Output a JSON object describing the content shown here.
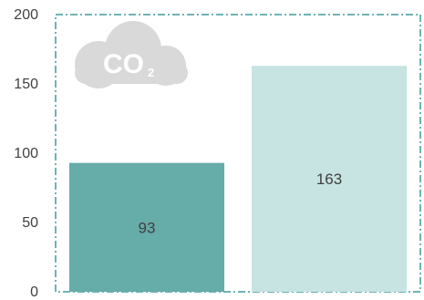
{
  "chart_data": {
    "type": "bar",
    "categories": [
      "",
      ""
    ],
    "values": [
      93,
      163
    ],
    "data_labels": [
      "93",
      "163"
    ],
    "ylim": [
      0,
      200
    ],
    "yticks": [
      "0",
      "50",
      "100",
      "150",
      "200"
    ],
    "title": "",
    "xlabel": "",
    "ylabel": "",
    "grid": false,
    "legend": "none",
    "colors": [
      "#66aca9",
      "#c7e3e2"
    ],
    "frame_color": "#3e9a9c"
  },
  "badge": {
    "icon": "co2-cloud-icon",
    "main": "CO",
    "sub": "2",
    "color": "#d9d9d9"
  }
}
